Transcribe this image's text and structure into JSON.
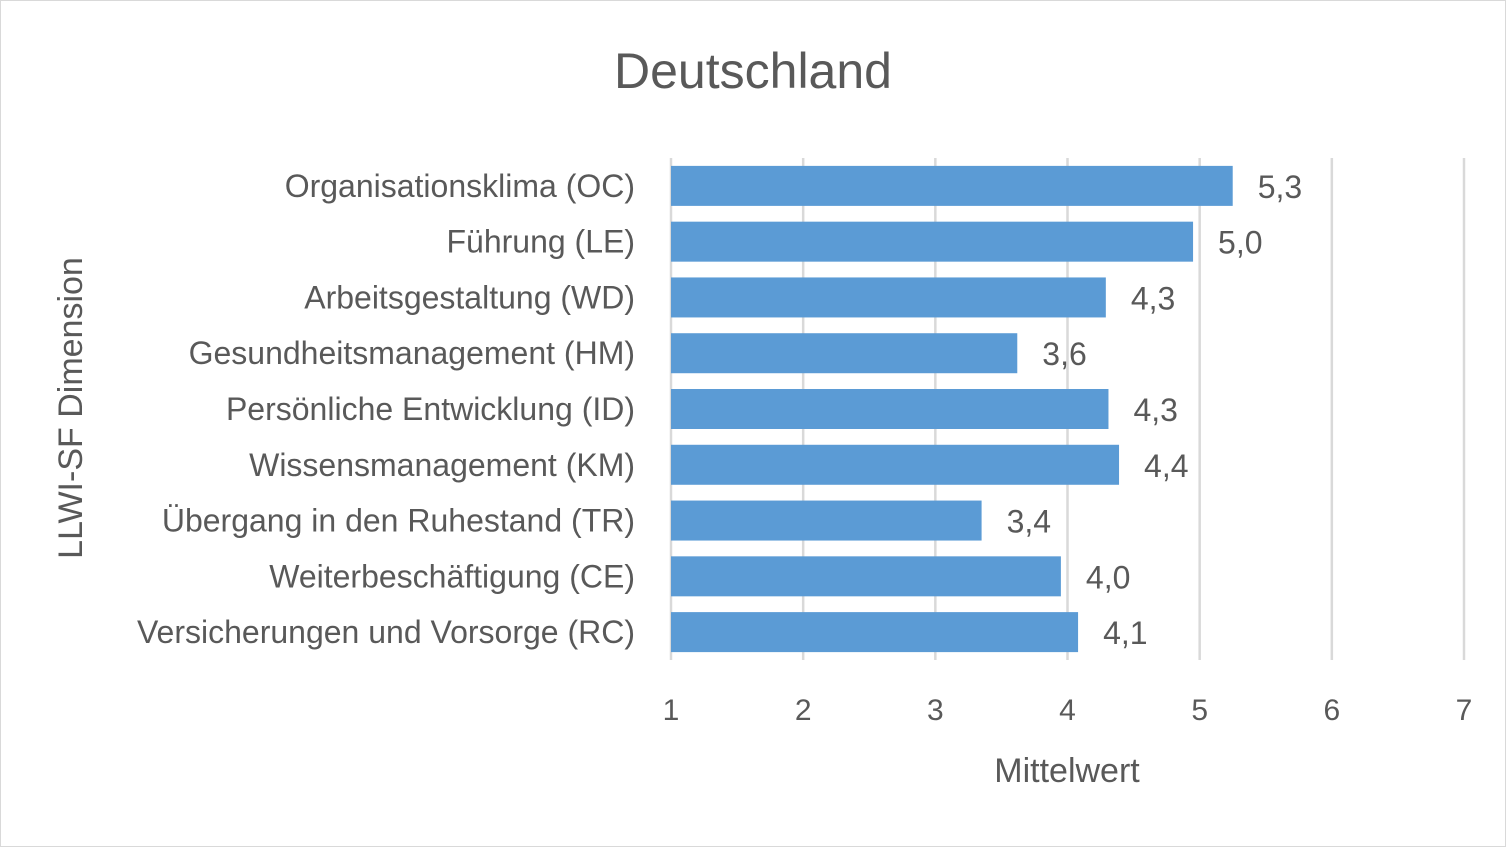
{
  "chart_data": {
    "type": "bar",
    "orientation": "horizontal",
    "title": "Deutschland",
    "xlabel": "Mittelwert",
    "ylabel": "LLWI-SF Dimension",
    "xlim": [
      1,
      7
    ],
    "xticks": [
      "1",
      "2",
      "3",
      "4",
      "5",
      "6",
      "7"
    ],
    "grid": true,
    "legend": "none",
    "bar_color": "#5b9bd5",
    "categories": [
      "Organisationsklima (OC)",
      "Führung (LE)",
      "Arbeitsgestaltung (WD)",
      "Gesundheitsmanagement (HM)",
      "Persönliche Entwicklung (ID)",
      "Wissensmanagement (KM)",
      "Übergang in den Ruhestand (TR)",
      "Weiterbeschäftigung (CE)",
      "Versicherungen und Vorsorge (RC)"
    ],
    "values": [
      5.25,
      4.95,
      4.29,
      3.62,
      4.31,
      4.39,
      3.35,
      3.95,
      4.08
    ],
    "data_labels": [
      "5,3",
      "5,0",
      "4,3",
      "3,6",
      "4,3",
      "4,4",
      "3,4",
      "4,0",
      "4,1"
    ]
  }
}
